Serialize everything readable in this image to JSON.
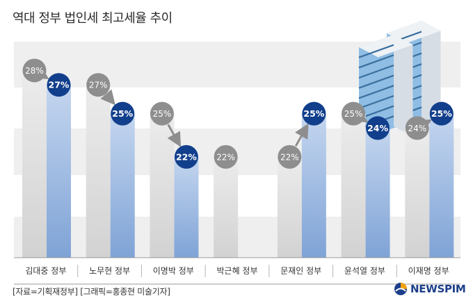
{
  "title": "역대 정부 법인세 최고세율 추이",
  "source": "[자료=기획재정부] [그래픽=홍종현 미술기자]",
  "logo": {
    "text": "NEWSPIM",
    "icon": "newspim-globe-icon"
  },
  "illustration": "office-building-icon",
  "colors": {
    "before_bar": "#d2d2d2",
    "after_bar": "#7fa3d6",
    "before_circle": "#8e8e8e",
    "after_circle": "#123f8c",
    "arrow": "#8e8e8e",
    "band": "#efefef"
  },
  "chart_data": {
    "type": "bar",
    "categories": [
      "김대중 정부",
      "노무현 정부",
      "이명박 정부",
      "박근혜 정부",
      "문재인 정부",
      "윤석열 정부",
      "이재명 정부"
    ],
    "series": [
      {
        "values": [
          28,
          27,
          25,
          22,
          22,
          25,
          24
        ],
        "labels": [
          "28%",
          "27%",
          "25%",
          "22%",
          "22%",
          "25%",
          "24%"
        ]
      },
      {
        "values": [
          27,
          25,
          22,
          null,
          25,
          24,
          25
        ],
        "labels": [
          "27%",
          "25%",
          "22%",
          null,
          "25%",
          "24%",
          "25%"
        ]
      }
    ],
    "ylim": [
      15,
      30
    ],
    "grid": false
  }
}
